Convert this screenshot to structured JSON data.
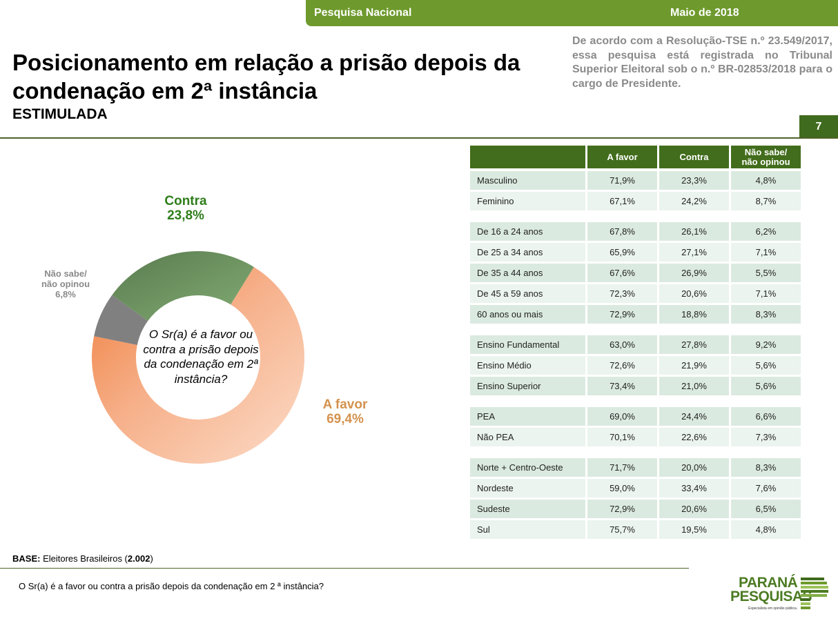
{
  "header": {
    "survey": "Pesquisa Nacional",
    "date": "Maio de 2018",
    "title": "Posicionamento em relação a prisão depois da condenação em 2ª instância",
    "subtitle": "ESTIMULADA",
    "legal_note": "De acordo com a Resolução-TSE n.º 23.549/2017, essa pesquisa está registrada no Tribunal Superior Eleitoral sob o n.º BR-02853/2018 para o cargo de Presidente.",
    "page_number": "7"
  },
  "chart_data": {
    "type": "pie",
    "variant": "donut",
    "title": "O Sr(a) é a favor ou contra a prisão depois da condenação em 2ª instância?",
    "slices": [
      {
        "label": "Contra",
        "value": 23.8,
        "display": "23,8%",
        "color": "#6f9a63"
      },
      {
        "label": "A favor",
        "value": 69.4,
        "display": "69,4%",
        "color": "#f4a77a"
      },
      {
        "label": "Não sabe/ não opinou",
        "value": 6.8,
        "display": "6,8%",
        "color": "#808080"
      }
    ],
    "label_lines": {
      "contra": [
        "Contra",
        "23,8%"
      ],
      "favor": [
        "A favor",
        "69,4%"
      ],
      "ns": [
        "Não sabe/",
        "não opinou",
        "6,8%"
      ]
    }
  },
  "table": {
    "headers": [
      "",
      "A favor",
      "Contra",
      "Não sabe/\nnão opinou"
    ],
    "header_lines": [
      "Não sabe/",
      "não opinou"
    ],
    "groups": [
      [
        [
          "Masculino",
          "71,9%",
          "23,3%",
          "4,8%"
        ],
        [
          "Feminino",
          "67,1%",
          "24,2%",
          "8,7%"
        ]
      ],
      [
        [
          "De 16 a 24 anos",
          "67,8%",
          "26,1%",
          "6,2%"
        ],
        [
          "De 25 a 34 anos",
          "65,9%",
          "27,1%",
          "7,1%"
        ],
        [
          "De 35 a 44 anos",
          "67,6%",
          "26,9%",
          "5,5%"
        ],
        [
          "De 45 a 59 anos",
          "72,3%",
          "20,6%",
          "7,1%"
        ],
        [
          "60 anos ou mais",
          "72,9%",
          "18,8%",
          "8,3%"
        ]
      ],
      [
        [
          "Ensino Fundamental",
          "63,0%",
          "27,8%",
          "9,2%"
        ],
        [
          "Ensino Médio",
          "72,6%",
          "21,9%",
          "5,6%"
        ],
        [
          "Ensino Superior",
          "73,4%",
          "21,0%",
          "5,6%"
        ]
      ],
      [
        [
          "PEA",
          "69,0%",
          "24,4%",
          "6,6%"
        ],
        [
          "Não PEA",
          "70,1%",
          "22,6%",
          "7,3%"
        ]
      ],
      [
        [
          "Norte + Centro-Oeste",
          "71,7%",
          "20,0%",
          "8,3%"
        ],
        [
          "Nordeste",
          "59,0%",
          "33,4%",
          "7,6%"
        ],
        [
          "Sudeste",
          "72,9%",
          "20,6%",
          "6,5%"
        ],
        [
          "Sul",
          "75,7%",
          "19,5%",
          "4,8%"
        ]
      ]
    ]
  },
  "footer": {
    "base_label": "BASE:",
    "base_text": " Eleitores Brasileiros (",
    "base_n": "2.002",
    "base_close": ")",
    "question": "O Sr(a) é a favor ou contra a prisão depois da condenação em 2 ª instância?"
  },
  "logo": {
    "line1": "PARANÁ",
    "line2": "PESQUISAS",
    "tagline": "Especialista em opinião pública."
  },
  "colors": {
    "brand_green": "#6e9a2d",
    "header_green": "#426d1c",
    "contra": "#2e7d1a",
    "favor": "#d4924e",
    "ns": "#8a8a8a"
  }
}
